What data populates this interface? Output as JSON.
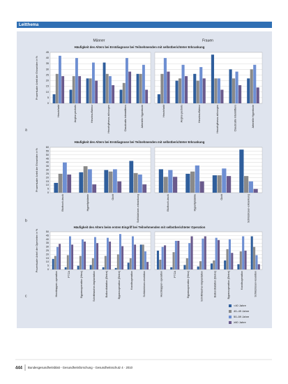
{
  "header": {
    "section": "Leitthema"
  },
  "columns": [
    "Männer",
    "Frauen"
  ],
  "legend": {
    "position": "lower right",
    "series": [
      {
        "name": "<40 Jahre",
        "color": "#2f5e9c"
      },
      {
        "name": "40–49 Jahre",
        "color": "#8a8a8a"
      },
      {
        "name": "50–59 Jahre",
        "color": "#6e8fd2"
      },
      {
        "name": "≥60 Jahre",
        "color": "#6a5a8c"
      }
    ]
  },
  "chart_data": [
    {
      "type": "bar",
      "label": "a",
      "grid": true,
      "title": "Häufigkeit des Alters bei Erstdiagnose bei Teilnehmenden mit selbstberichteter Erkrankung",
      "y_label": "Prozentualer Anteil der Erkrankten in %",
      "categories": [
        "Herzinfarkt",
        "Angina pectoris",
        "Herzinsuffizienz",
        "Herzrhythmus-störungen",
        "Claudicatio intermittens",
        "Arterielle Hypertonie"
      ],
      "ylim": [
        0,
        45
      ],
      "yticks": [
        0,
        5,
        10,
        15,
        20,
        25,
        30,
        35,
        40,
        45
      ],
      "panels": [
        {
          "series": [
            {
              "values": [
                8,
                12,
                22,
                36,
                12,
                26
              ]
            },
            {
              "values": [
                26,
                24,
                22,
                26,
                18,
                26
              ]
            },
            {
              "values": [
                42,
                40,
                36,
                24,
                40,
                34
              ]
            },
            {
              "values": [
                24,
                24,
                20,
                16,
                28,
                12
              ]
            }
          ]
        },
        {
          "series": [
            {
              "values": [
                8,
                20,
                26,
                43,
                30,
                22
              ]
            },
            {
              "values": [
                26,
                22,
                20,
                22,
                22,
                30
              ]
            },
            {
              "values": [
                40,
                34,
                32,
                22,
                28,
                34
              ]
            },
            {
              "values": [
                28,
                24,
                22,
                12,
                16,
                14
              ]
            }
          ]
        }
      ]
    },
    {
      "type": "bar",
      "label": "b",
      "grid": true,
      "title": "Häufigkeit des Alters bei Erstdiagnose bei Teilnehmenden mit selbstberichteter Erkrankung",
      "y_label": "Prozentualer Anteil der Erkrankten in %",
      "categories": [
        "Bluthoch-druck",
        "Hyperlipidämie",
        "Gicht",
        "Schilddrüsen-erkrankung"
      ],
      "ylim": [
        0,
        60
      ],
      "yticks": [
        0,
        5,
        10,
        15,
        20,
        25,
        30,
        35,
        40,
        45,
        50,
        55,
        60
      ],
      "panels": [
        {
          "series": [
            {
              "values": [
                13,
                27,
                30,
                42
              ]
            },
            {
              "values": [
                25,
                35,
                28,
                26
              ]
            },
            {
              "values": [
                40,
                31,
                31,
                24
              ]
            },
            {
              "values": [
                24,
                11,
                15,
                11
              ]
            }
          ]
        },
        {
          "series": [
            {
              "values": [
                31,
                25,
                23,
                57
              ]
            },
            {
              "values": [
                21,
                28,
                23,
                22
              ]
            },
            {
              "values": [
                30,
                36,
                32,
                15
              ]
            },
            {
              "values": [
                21,
                15,
                22,
                5
              ]
            }
          ]
        }
      ]
    },
    {
      "type": "bar",
      "label": "c",
      "grid": true,
      "title": "Häufigkeit des Alters beim ersten Eingriff bei Teilnehmenden mit selbstberichteter Operation",
      "y_label": "Prozentualer Anteil der Operierten in %",
      "categories": [
        "Herzklappen-operation",
        "PTCA",
        "Bypassoperation (Herz)",
        "Schrittmacher-implantation",
        "Ballondilatation (Beine)",
        "Bypassoperation (Beine)",
        "Karotisoperation",
        "Schilddrüsen-resektion"
      ],
      "ylim": [
        0,
        50
      ],
      "yticks": [
        0,
        5,
        10,
        15,
        20,
        25,
        30,
        35,
        40,
        45,
        50
      ],
      "panels": [
        {
          "series": [
            {
              "values": [
                14,
                3,
                5,
                6,
                3,
                2,
                9,
                33
              ]
            },
            {
              "values": [
                18,
                19,
                18,
                15,
                18,
                20,
                15,
                33
              ]
            },
            {
              "values": [
                30,
                44,
                40,
                43,
                42,
                47,
                44,
                24
              ]
            },
            {
              "values": [
                34,
                33,
                37,
                35,
                37,
                31,
                33,
                10
              ]
            }
          ]
        },
        {
          "series": [
            {
              "values": [
                25,
                3,
                6,
                4,
                8,
                12,
                7,
                44
              ]
            },
            {
              "values": [
                13,
                23,
                15,
                11,
                12,
                27,
                24,
                30
              ]
            },
            {
              "values": [
                30,
                38,
                35,
                41,
                42,
                40,
                44,
                19
              ]
            },
            {
              "values": [
                32,
                38,
                44,
                44,
                39,
                22,
                25,
                7
              ]
            }
          ]
        }
      ]
    }
  ],
  "footer": {
    "page": "444",
    "journal": "Bundesgesundheitsblatt - Gesundheitsforschung - Gesundheitsschutz 4 · 2010"
  }
}
